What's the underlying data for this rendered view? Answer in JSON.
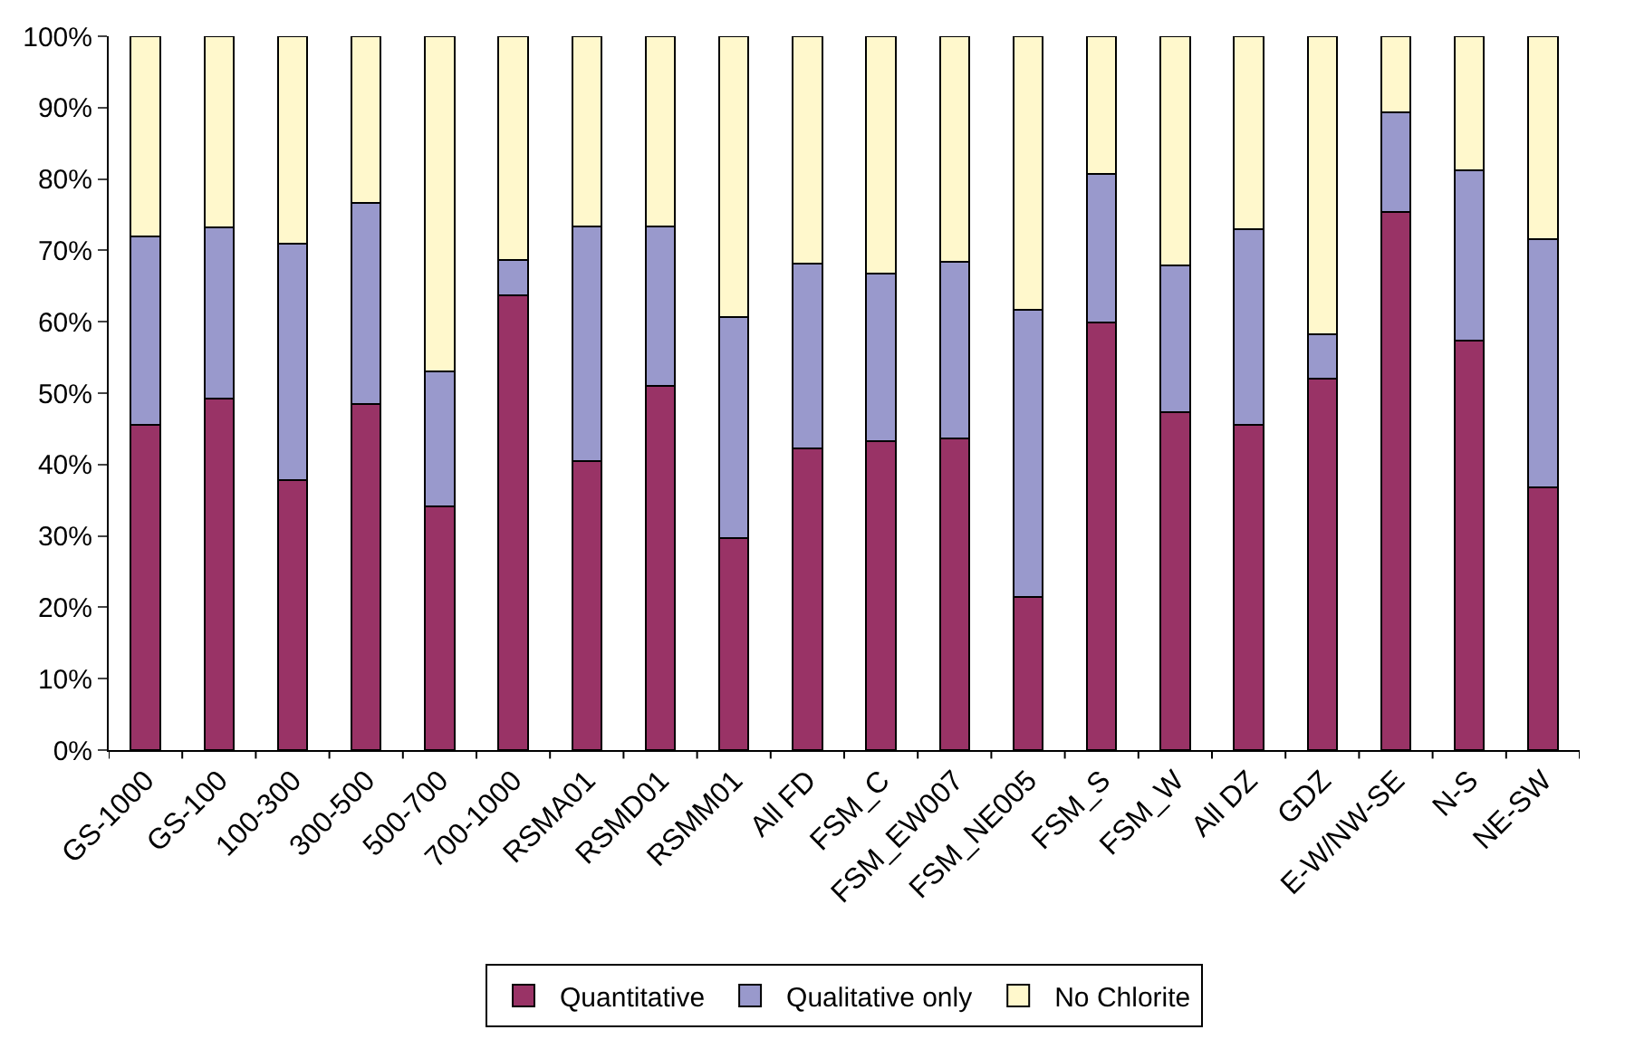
{
  "chart_data": {
    "type": "bar",
    "stacked": true,
    "categories": [
      "GS-1000",
      "GS-100",
      "100-300",
      "300-500",
      "500-700",
      "700-1000",
      "RSMA01",
      "RSMD01",
      "RSMM01",
      "All FD",
      "FSM_C",
      "FSM_EW007",
      "FSM_NE005",
      "FSM_S",
      "FSM_W",
      "All DZ",
      "GDZ",
      "E-W/NW-SE",
      "N-S",
      "NE-SW"
    ],
    "series": [
      {
        "name": "Quantitative",
        "color": "#993366",
        "values": [
          45.5,
          49.2,
          37.8,
          48.5,
          34.2,
          63.7,
          40.5,
          51,
          29.7,
          42.3,
          43.3,
          43.7,
          21.4,
          59.9,
          47.3,
          45.6,
          52,
          75.4,
          57.4,
          36.8
        ]
      },
      {
        "name": "Qualitative only",
        "color": "#9999cc",
        "values": [
          26.5,
          24,
          33.2,
          28.2,
          18.8,
          4.9,
          32.8,
          22.4,
          30.9,
          25.9,
          23.4,
          24.7,
          40.3,
          20.8,
          20.6,
          27.4,
          6.2,
          13.9,
          23.8,
          34.8
        ]
      },
      {
        "name": "No Chlorite",
        "color": "#fff8cc",
        "values": [
          28,
          26.8,
          29,
          23.3,
          47,
          31.4,
          26.7,
          26.6,
          39.4,
          31.8,
          33.3,
          31.6,
          38.3,
          19.3,
          32.1,
          27,
          41.8,
          10.7,
          18.8,
          28.4
        ]
      }
    ],
    "ylim": [
      0,
      100
    ],
    "yticks": [
      {
        "value": 0,
        "label": "0%"
      },
      {
        "value": 10,
        "label": "10%"
      },
      {
        "value": 20,
        "label": "20%"
      },
      {
        "value": 30,
        "label": "30%"
      },
      {
        "value": 40,
        "label": "40%"
      },
      {
        "value": 50,
        "label": "50%"
      },
      {
        "value": 60,
        "label": "60%"
      },
      {
        "value": 70,
        "label": "70%"
      },
      {
        "value": 80,
        "label": "80%"
      },
      {
        "value": 90,
        "label": "90%"
      },
      {
        "value": 100,
        "label": "100%"
      }
    ],
    "legend": "bottom"
  }
}
